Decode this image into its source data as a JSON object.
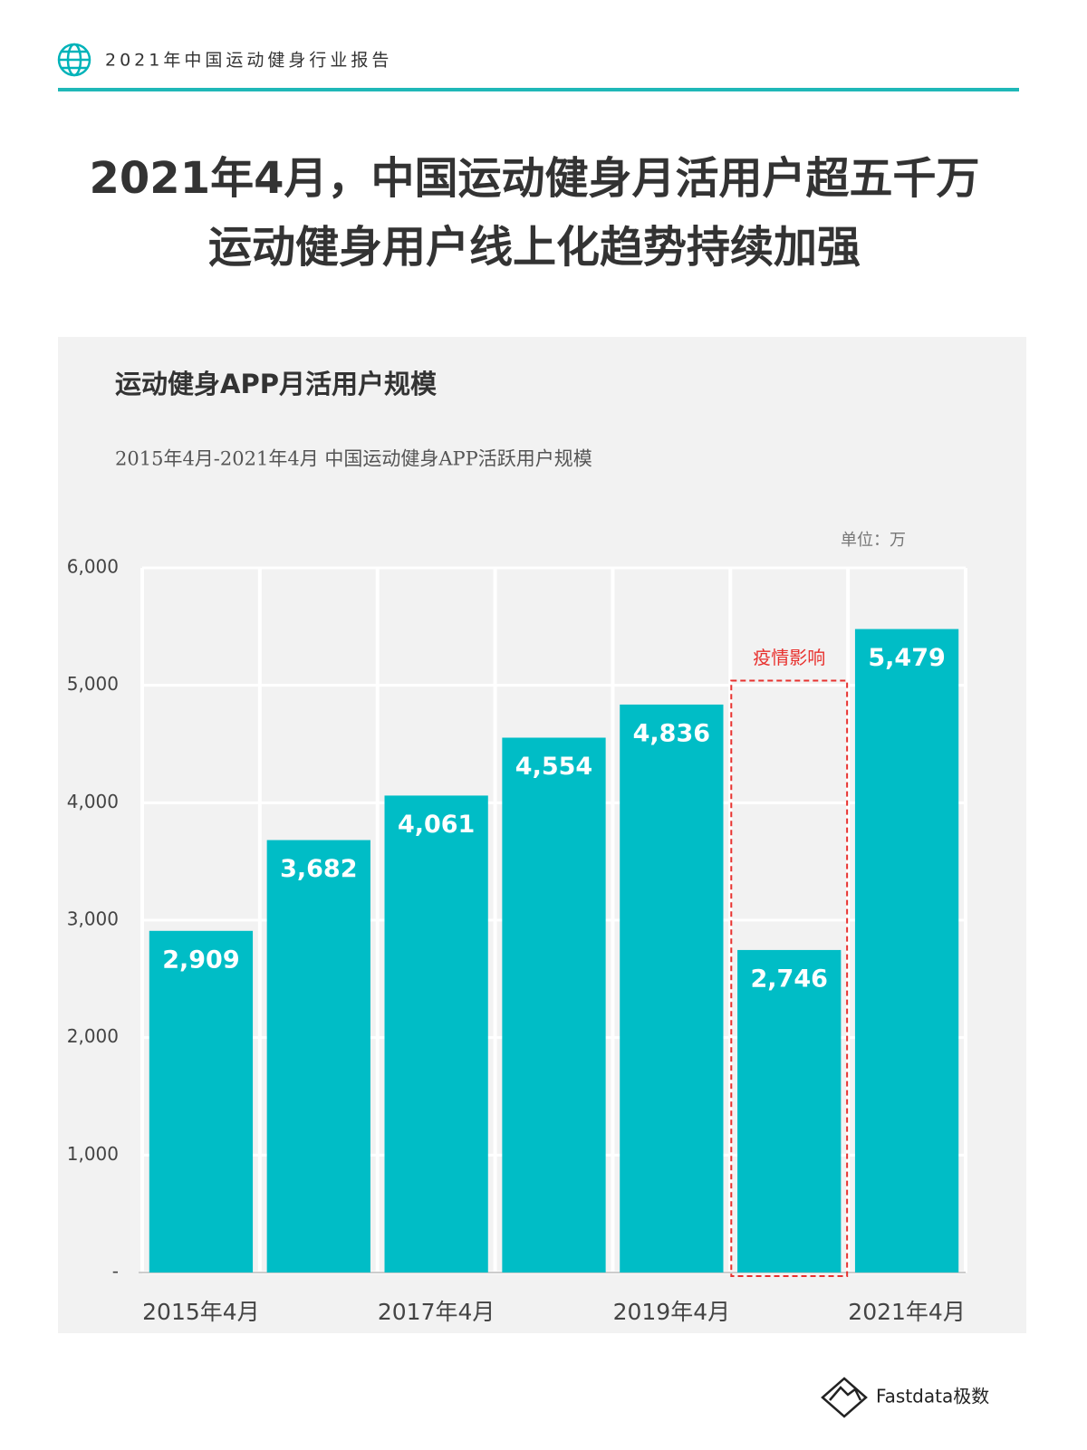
{
  "header": {
    "text": "2021年中国运动健身行业报告"
  },
  "title": [
    "2021年4月，中国运动健身月活用户超五千万",
    "运动健身用户线上化趋势持续加强"
  ],
  "chart_data": {
    "type": "bar",
    "title": "运动健身APP月活用户规模",
    "subtitle": "2015年4月-2021年4月 中国运动健身APP活跃用户规模",
    "unit": "单位：万",
    "annotation": "疫情影响",
    "categories": [
      "2015年4月",
      null,
      "2017年4月",
      null,
      "2019年4月",
      null,
      "2021年4月"
    ],
    "values": [
      2909,
      3682,
      4061,
      4554,
      4836,
      2746,
      5479
    ],
    "value_labels": [
      "2,909",
      "3,682",
      "4,061",
      "4,554",
      "4,836",
      "2,746",
      "5,479"
    ],
    "color": "#00bdc6",
    "ylim": [
      0,
      6000
    ],
    "yticks": [
      {
        "value": 0,
        "label": "-"
      },
      {
        "value": 1000,
        "label": "1,000"
      },
      {
        "value": 2000,
        "label": "2,000"
      },
      {
        "value": 3000,
        "label": "3,000"
      },
      {
        "value": 4000,
        "label": "4,000"
      },
      {
        "value": 5000,
        "label": "5,000"
      },
      {
        "value": 6000,
        "label": "6,000"
      }
    ],
    "grid": true
  },
  "footer": {
    "brand": "Fastdata极数"
  }
}
